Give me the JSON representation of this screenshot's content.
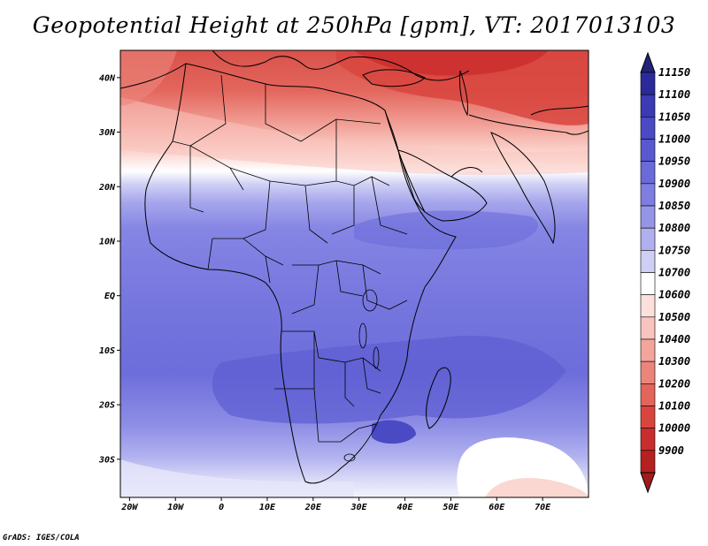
{
  "title": "Geopotential Height at 250hPa [gpm], VT: 2017013103",
  "credit": "GrADS: IGES/COLA",
  "map": {
    "lat_labels": [
      "40N",
      "30N",
      "20N",
      "10N",
      "EQ",
      "10S",
      "20S",
      "30S"
    ],
    "lon_labels": [
      "20W",
      "10W",
      "0",
      "10E",
      "20E",
      "30E",
      "40E",
      "50E",
      "60E",
      "70E"
    ],
    "lat_range": [
      -37,
      45
    ],
    "lon_range": [
      -22,
      80
    ]
  },
  "colorbar": {
    "levels": [
      "11150",
      "11100",
      "11050",
      "11000",
      "10950",
      "10900",
      "10850",
      "10800",
      "10750",
      "10700",
      "10600",
      "10500",
      "10400",
      "10300",
      "10200",
      "10100",
      "10000",
      "9900"
    ],
    "colors": [
      "#2a2a9a",
      "#3b3bb3",
      "#4a4ac4",
      "#5858cf",
      "#6a6ad9",
      "#7d7de2",
      "#9595e8",
      "#b0b0ef",
      "#cfcff5",
      "#ffffff",
      "#fde0dc",
      "#f9c4bd",
      "#f3a59c",
      "#eb857b",
      "#e3645b",
      "#d8453e",
      "#c92d2d",
      "#b52020"
    ],
    "top_color": "#22227a",
    "bottom_color": "#a01c1c"
  }
}
